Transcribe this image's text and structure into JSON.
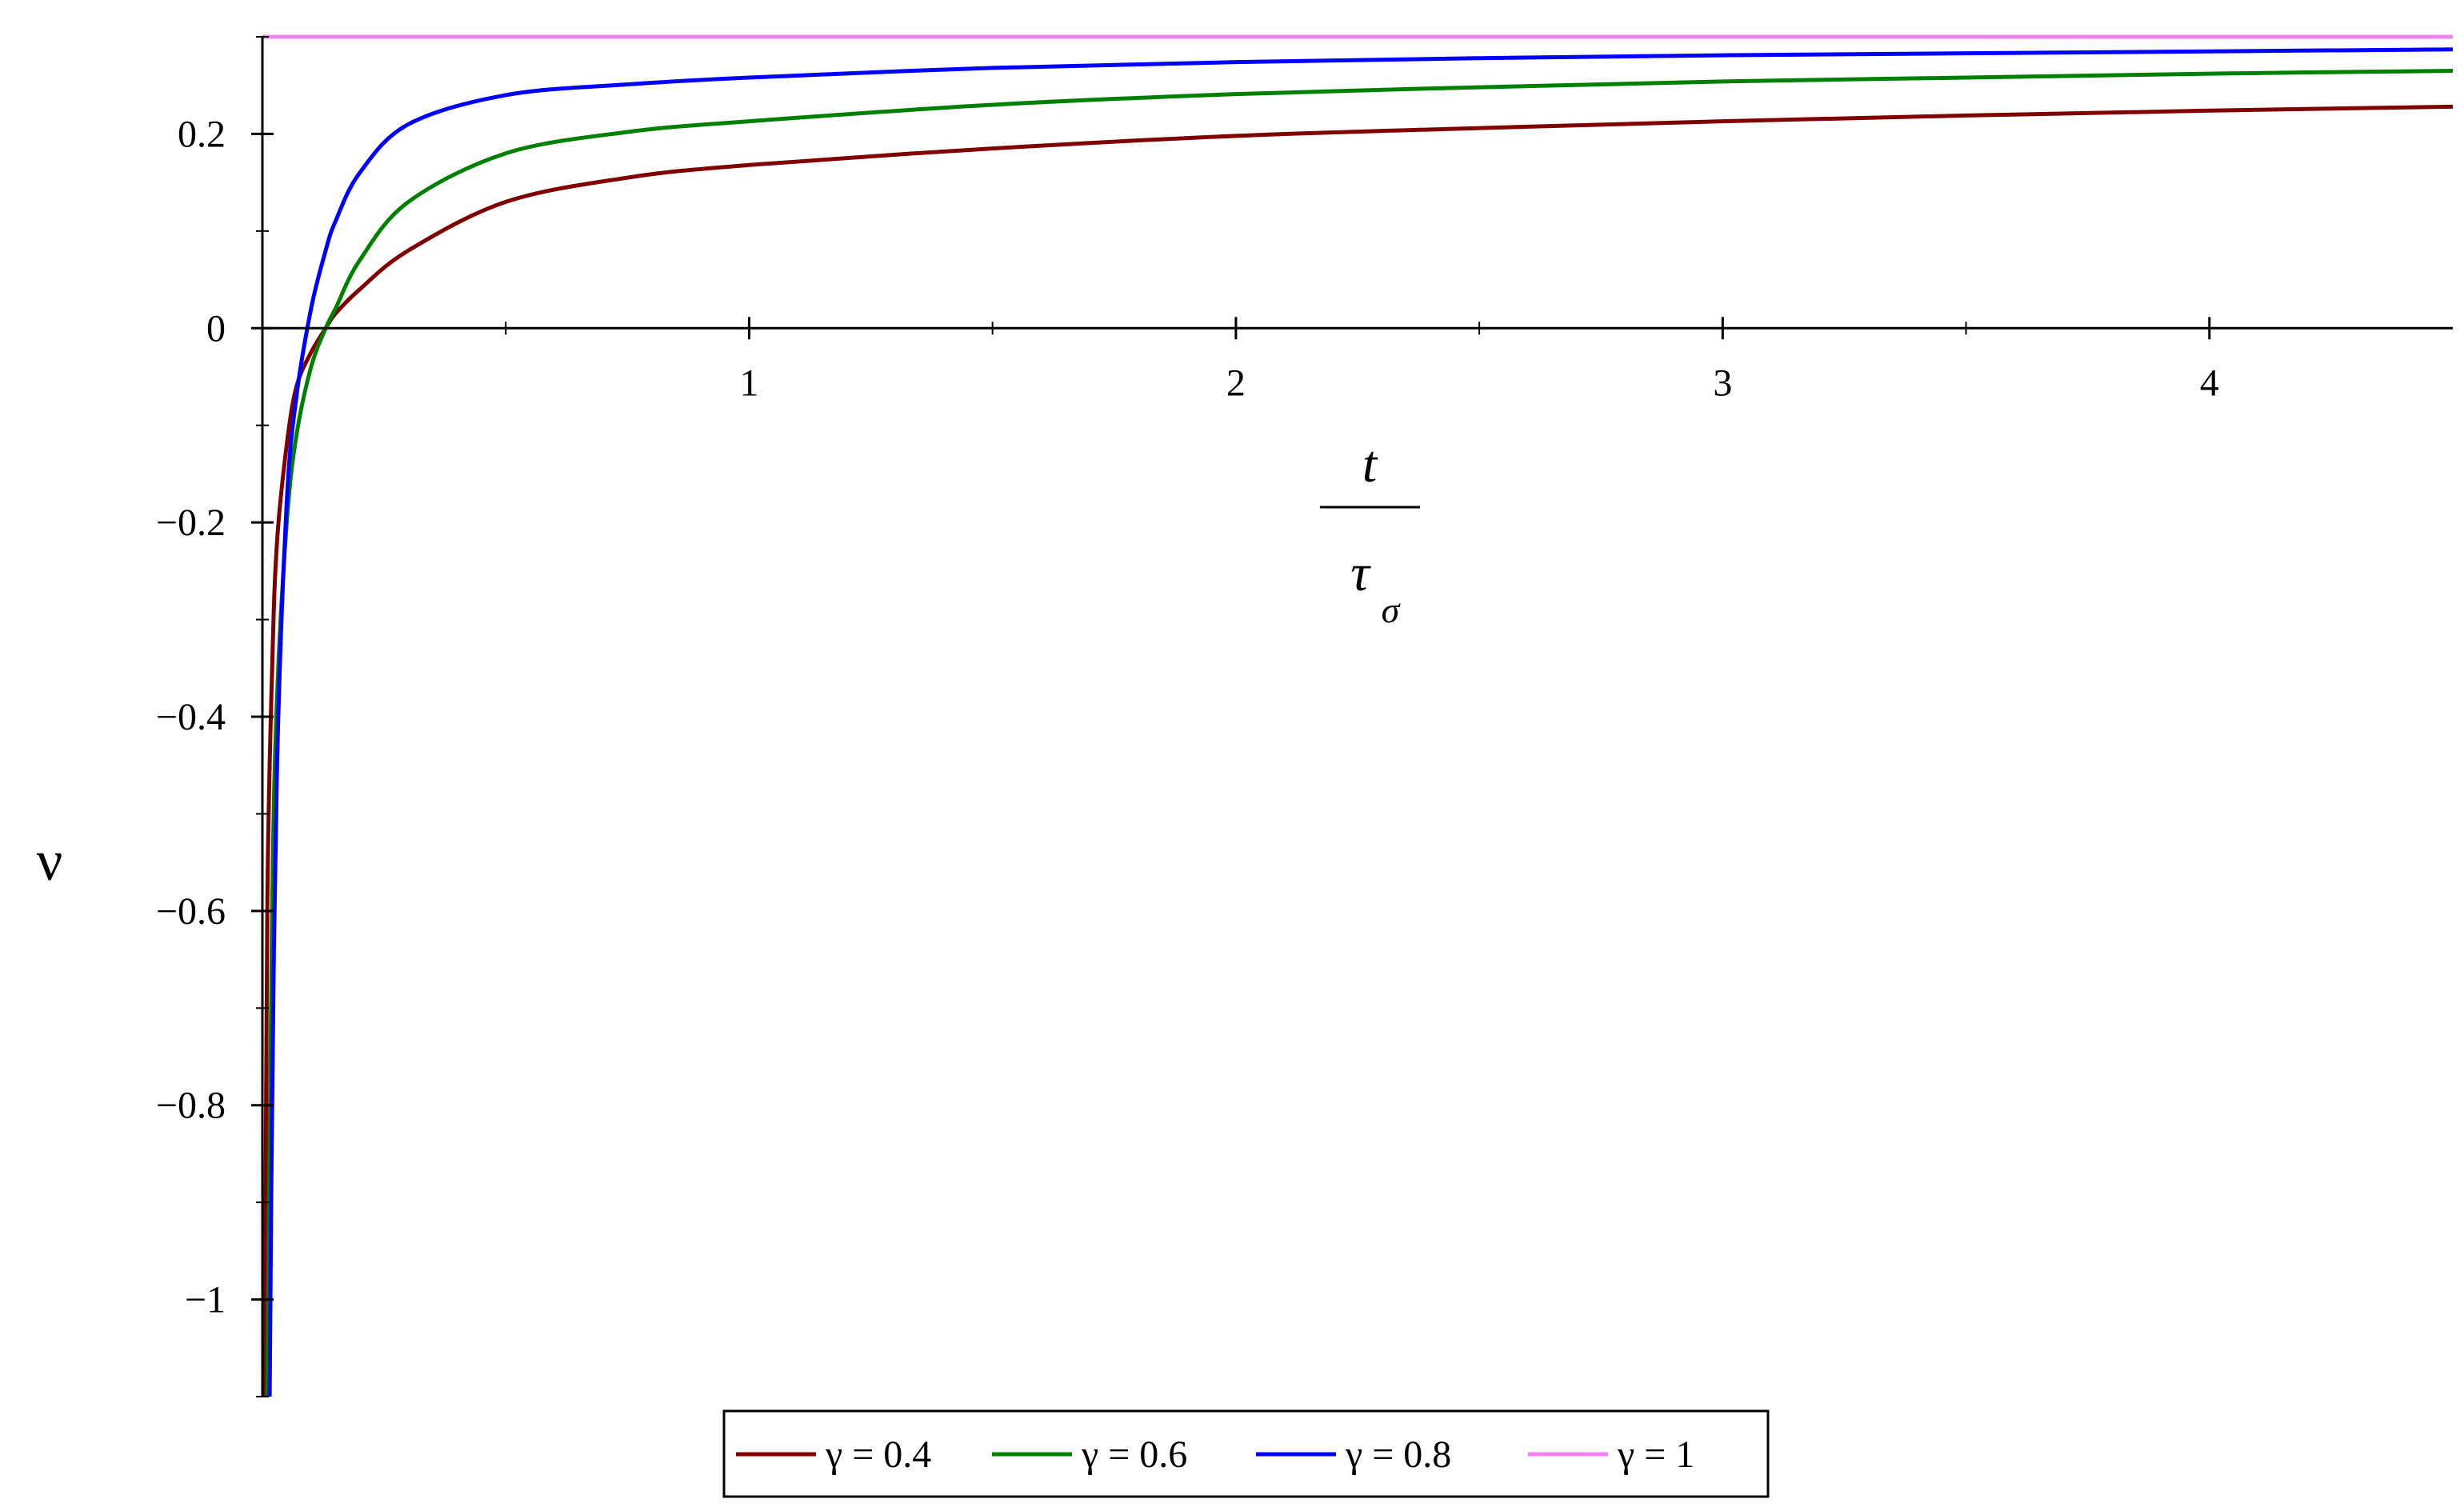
{
  "chart_data": {
    "type": "line",
    "xlabel": {
      "numerator": "t",
      "denominator": "τ",
      "denominator_subscript": "σ"
    },
    "ylabel": "ν",
    "xlim": [
      0,
      4.5
    ],
    "ylim": [
      -1.1,
      0.3
    ],
    "x_ticks": [
      1,
      2,
      3,
      4
    ],
    "x_tick_labels": [
      "1",
      "2",
      "3",
      "4"
    ],
    "y_ticks": [
      0.2,
      0,
      -0.2,
      -0.4,
      -0.6,
      -0.8,
      -1
    ],
    "y_tick_labels": [
      "0.2",
      "0",
      "−0.2",
      "−0.4",
      "−0.6",
      "−0.8",
      "−1"
    ],
    "grid": false,
    "legend_position": "bottom-center",
    "series": [
      {
        "name": "γ = 0.4",
        "color": "#800000",
        "x": [
          0.005,
          0.01,
          0.02,
          0.03,
          0.05,
          0.07,
          0.1,
          0.13,
          0.15,
          0.2,
          0.3,
          0.5,
          0.75,
          1,
          1.5,
          2,
          2.5,
          3,
          3.5,
          4,
          4.5
        ],
        "y": [
          -1.1,
          -0.6,
          -0.35,
          -0.22,
          -0.12,
          -0.06,
          -0.025,
          0.0,
          0.015,
          0.04,
          0.08,
          0.13,
          0.155,
          0.168,
          0.185,
          0.198,
          0.206,
          0.213,
          0.219,
          0.224,
          0.228
        ]
      },
      {
        "name": "γ = 0.6",
        "color": "#008000",
        "x": [
          0.01,
          0.02,
          0.03,
          0.05,
          0.07,
          0.1,
          0.13,
          0.15,
          0.2,
          0.3,
          0.5,
          0.75,
          1,
          1.5,
          2,
          2.5,
          3,
          3.5,
          4,
          4.5
        ],
        "y": [
          -1.1,
          -0.6,
          -0.38,
          -0.2,
          -0.11,
          -0.04,
          0.0,
          0.02,
          0.07,
          0.13,
          0.18,
          0.202,
          0.213,
          0.23,
          0.241,
          0.248,
          0.254,
          0.258,
          0.262,
          0.265
        ]
      },
      {
        "name": "γ = 0.8",
        "color": "#0000ff",
        "x": [
          0.015,
          0.02,
          0.03,
          0.05,
          0.07,
          0.1,
          0.13,
          0.15,
          0.2,
          0.3,
          0.5,
          0.75,
          1,
          1.5,
          2,
          2.5,
          3,
          3.5,
          4,
          4.5
        ],
        "y": [
          -1.1,
          -0.8,
          -0.45,
          -0.18,
          -0.07,
          0.02,
          0.08,
          0.11,
          0.16,
          0.21,
          0.24,
          0.251,
          0.258,
          0.268,
          0.274,
          0.278,
          0.281,
          0.283,
          0.285,
          0.287
        ]
      },
      {
        "name": "γ = 1",
        "color": "#ee82ee",
        "x": [
          0,
          4.5
        ],
        "y": [
          0.3,
          0.3
        ]
      }
    ]
  }
}
